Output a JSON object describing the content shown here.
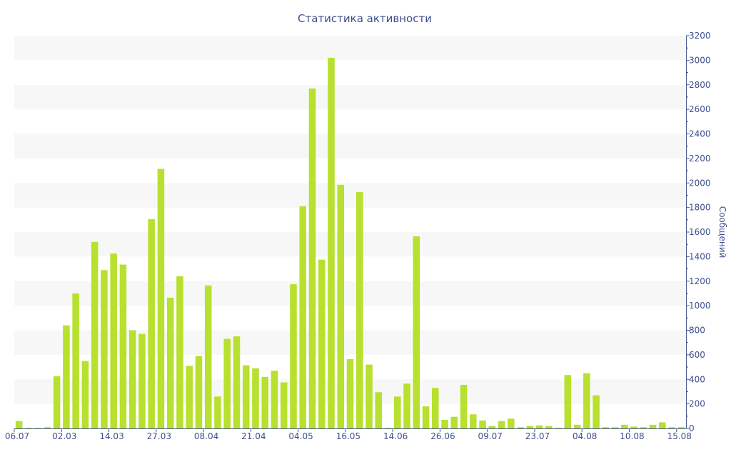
{
  "chart_data": {
    "type": "bar",
    "title": "Статистика активности",
    "xlabel": "",
    "ylabel": "Сообщений",
    "ylim": [
      0,
      3200
    ],
    "y_axis_side": "right",
    "yticks": [
      0,
      200,
      400,
      600,
      800,
      1000,
      1200,
      1400,
      1600,
      1800,
      2000,
      2200,
      2400,
      2600,
      2800,
      3000,
      3200
    ],
    "xtick_labels": [
      "06.07",
      "02.03",
      "14.03",
      "27.03",
      "08.04",
      "21.04",
      "04.05",
      "16.05",
      "14.06",
      "26.06",
      "09.07",
      "23.07",
      "04.08",
      "10.08",
      "15.08"
    ],
    "xtick_indices": [
      0,
      5,
      10,
      15,
      20,
      25,
      30,
      35,
      40,
      45,
      50,
      55,
      60,
      65,
      70
    ],
    "grid": "horizontal alternating bands",
    "bar_color": "#b8e02e",
    "values": [
      60,
      5,
      5,
      10,
      425,
      840,
      1100,
      550,
      1520,
      1290,
      1425,
      1335,
      800,
      770,
      1705,
      2115,
      1065,
      1240,
      510,
      590,
      1165,
      260,
      730,
      750,
      515,
      490,
      420,
      470,
      375,
      1175,
      1810,
      2770,
      1375,
      3020,
      1985,
      565,
      1925,
      520,
      295,
      5,
      260,
      365,
      1565,
      180,
      330,
      70,
      95,
      355,
      115,
      65,
      20,
      60,
      80,
      10,
      20,
      25,
      20,
      5,
      435,
      30,
      450,
      270,
      10,
      10,
      30,
      15,
      10,
      30,
      50,
      10,
      10
    ]
  }
}
